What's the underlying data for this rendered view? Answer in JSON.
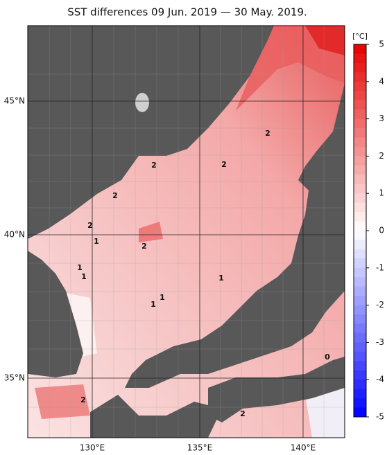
{
  "title": "SST differences 09 Jun. 2019 — 30 May. 2019.",
  "latitude_labels": [
    "45°N",
    "40°N",
    "35°N"
  ],
  "longitude_labels": [
    "130°E",
    "135°E",
    "140°E"
  ],
  "colorbar": {
    "unit": "[°C]",
    "ticks": [
      5,
      4,
      3,
      2,
      1,
      0,
      -1,
      -2,
      -3,
      -4,
      -5
    ]
  },
  "contour_labels": [
    "2",
    "2",
    "2",
    "2",
    "2",
    "1",
    "2",
    "1",
    "1",
    "1",
    "1",
    "1",
    "0",
    "2",
    "2"
  ]
}
